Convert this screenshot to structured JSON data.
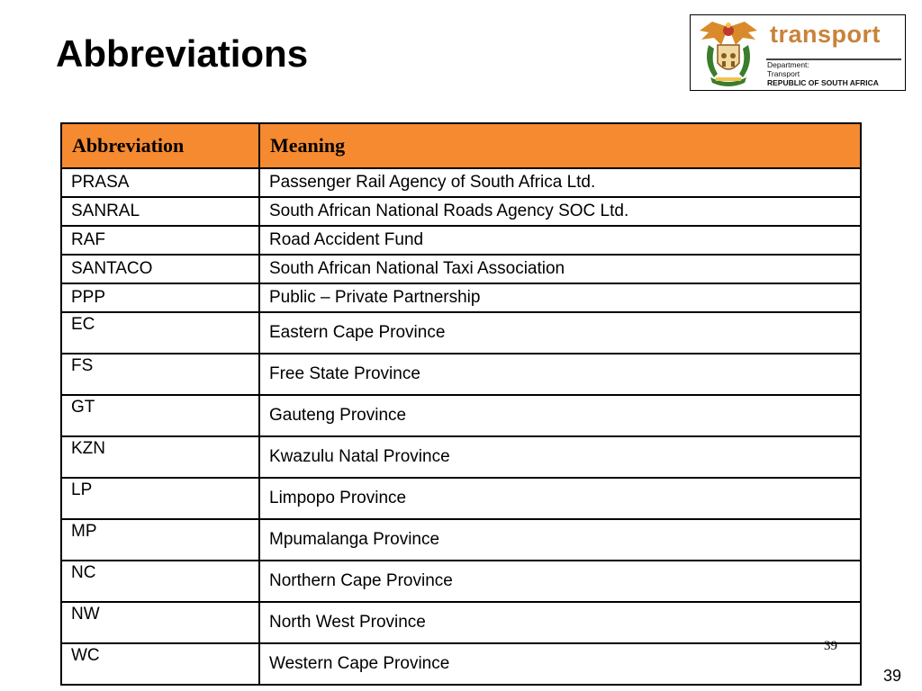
{
  "title": "Abbreviations",
  "logo": {
    "brand": "transport",
    "department": "Department:",
    "unit": "Transport",
    "country": "REPUBLIC OF SOUTH AFRICA"
  },
  "table": {
    "headers": [
      "Abbreviation",
      "Meaning"
    ],
    "rows": [
      {
        "abbr": "PRASA",
        "meaning": "Passenger Rail Agency of South Africa Ltd."
      },
      {
        "abbr": "SANRAL",
        "meaning": "South African National Roads Agency SOC Ltd."
      },
      {
        "abbr": "RAF",
        "meaning": "Road Accident Fund"
      },
      {
        "abbr": "SANTACO",
        "meaning": "South African National Taxi Association"
      },
      {
        "abbr": "PPP",
        "meaning": "Public – Private Partnership"
      },
      {
        "abbr": "EC",
        "meaning": "Eastern Cape Province"
      },
      {
        "abbr": "FS",
        "meaning": "Free State Province"
      },
      {
        "abbr": "GT",
        "meaning": "Gauteng Province"
      },
      {
        "abbr": "KZN",
        "meaning": "Kwazulu Natal Province"
      },
      {
        "abbr": "LP",
        "meaning": "Limpopo Province"
      },
      {
        "abbr": "MP",
        "meaning": "Mpumalanga Province"
      },
      {
        "abbr": "NC",
        "meaning": "Northern Cape Province"
      },
      {
        "abbr": "NW",
        "meaning": "North West Province"
      },
      {
        "abbr": "WC",
        "meaning": "Western Cape Province"
      }
    ]
  },
  "page_number_footer": "39",
  "page_number_slide": "39",
  "colors": {
    "header_fill": "#f58a31",
    "brand": "#c9823a"
  }
}
